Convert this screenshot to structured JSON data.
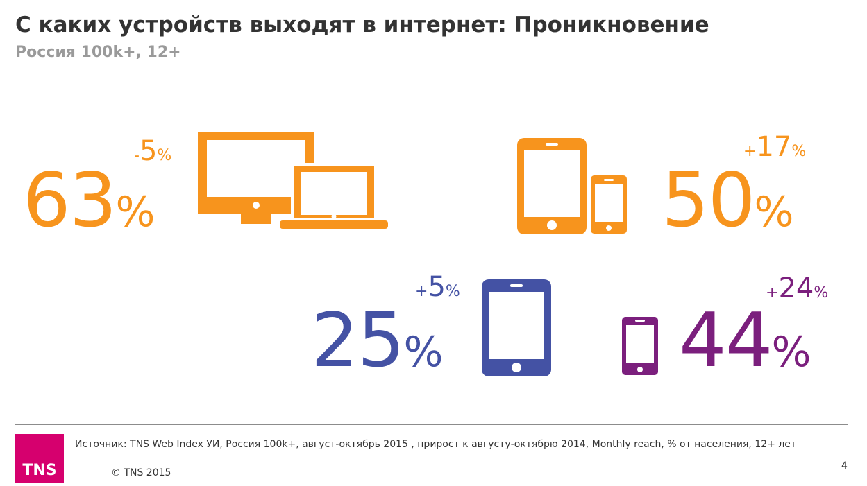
{
  "title": "С каких устройств выходят в интернет: Проникновение",
  "subtitle": "Россия 100k+, 12+",
  "colors": {
    "orange": "#f7941d",
    "blue": "#4452a4",
    "purple": "#7b1f7d",
    "tns_magenta": "#d6006e"
  },
  "stats": {
    "desktop_laptop": {
      "value": "63",
      "unit": "%",
      "delta_sign": "-",
      "delta_value": "5",
      "delta_unit": "%",
      "icon": "desktop-laptop-icon"
    },
    "tablet_phone": {
      "value": "50",
      "unit": "%",
      "delta_sign": "+",
      "delta_value": "17",
      "delta_unit": "%",
      "icon": "tablet-phone-icon"
    },
    "tablet": {
      "value": "25",
      "unit": "%",
      "delta_sign": "+",
      "delta_value": "5",
      "delta_unit": "%",
      "icon": "tablet-icon"
    },
    "smartphone": {
      "value": "44",
      "unit": "%",
      "delta_sign": "+",
      "delta_value": "24",
      "delta_unit": "%",
      "icon": "smartphone-icon"
    }
  },
  "footer": {
    "logo_text": "TNS",
    "source": "Источник: TNS Web Index УИ, Россия 100k+, август-октябрь 2015 , прирост к августу-октябрю 2014, Monthly reach, % от населения, 12+ лет",
    "copyright": "© TNS 2015",
    "page_number": "4"
  }
}
